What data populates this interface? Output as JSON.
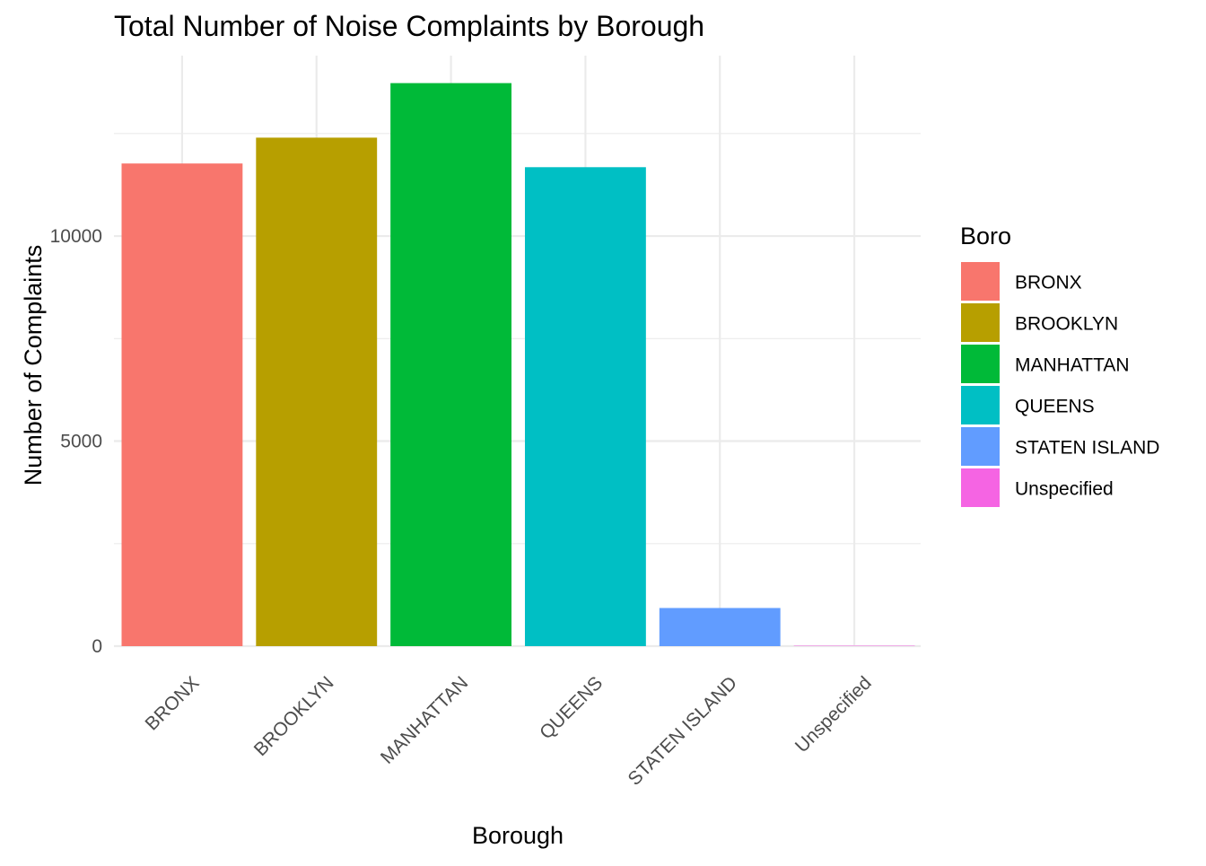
{
  "chart_data": {
    "type": "bar",
    "title": "Total Number of Noise Complaints by Borough",
    "xlabel": "Borough",
    "ylabel": "Number of Complaints",
    "categories": [
      "BRONX",
      "BROOKLYN",
      "MANHATTAN",
      "QUEENS",
      "STATEN ISLAND",
      "Unspecified"
    ],
    "values": [
      11770,
      12400,
      13730,
      11680,
      930,
      10
    ],
    "colors": [
      "#F8766D",
      "#B79F00",
      "#00BA38",
      "#00BFC4",
      "#619CFF",
      "#F564E3"
    ],
    "ylim": [
      0,
      14400
    ],
    "yticks": [
      0,
      5000,
      10000
    ],
    "yticks_labels": [
      "0",
      "5000",
      "10000"
    ],
    "y_minor_gridlines": [
      2500,
      7500,
      12500
    ],
    "grid": true,
    "legend": {
      "title": "Boro",
      "position": "right",
      "entries": [
        "BRONX",
        "BROOKLYN",
        "MANHATTAN",
        "QUEENS",
        "STATEN ISLAND",
        "Unspecified"
      ]
    },
    "background": "#ffffff",
    "grid_color": "#ebebeb"
  }
}
